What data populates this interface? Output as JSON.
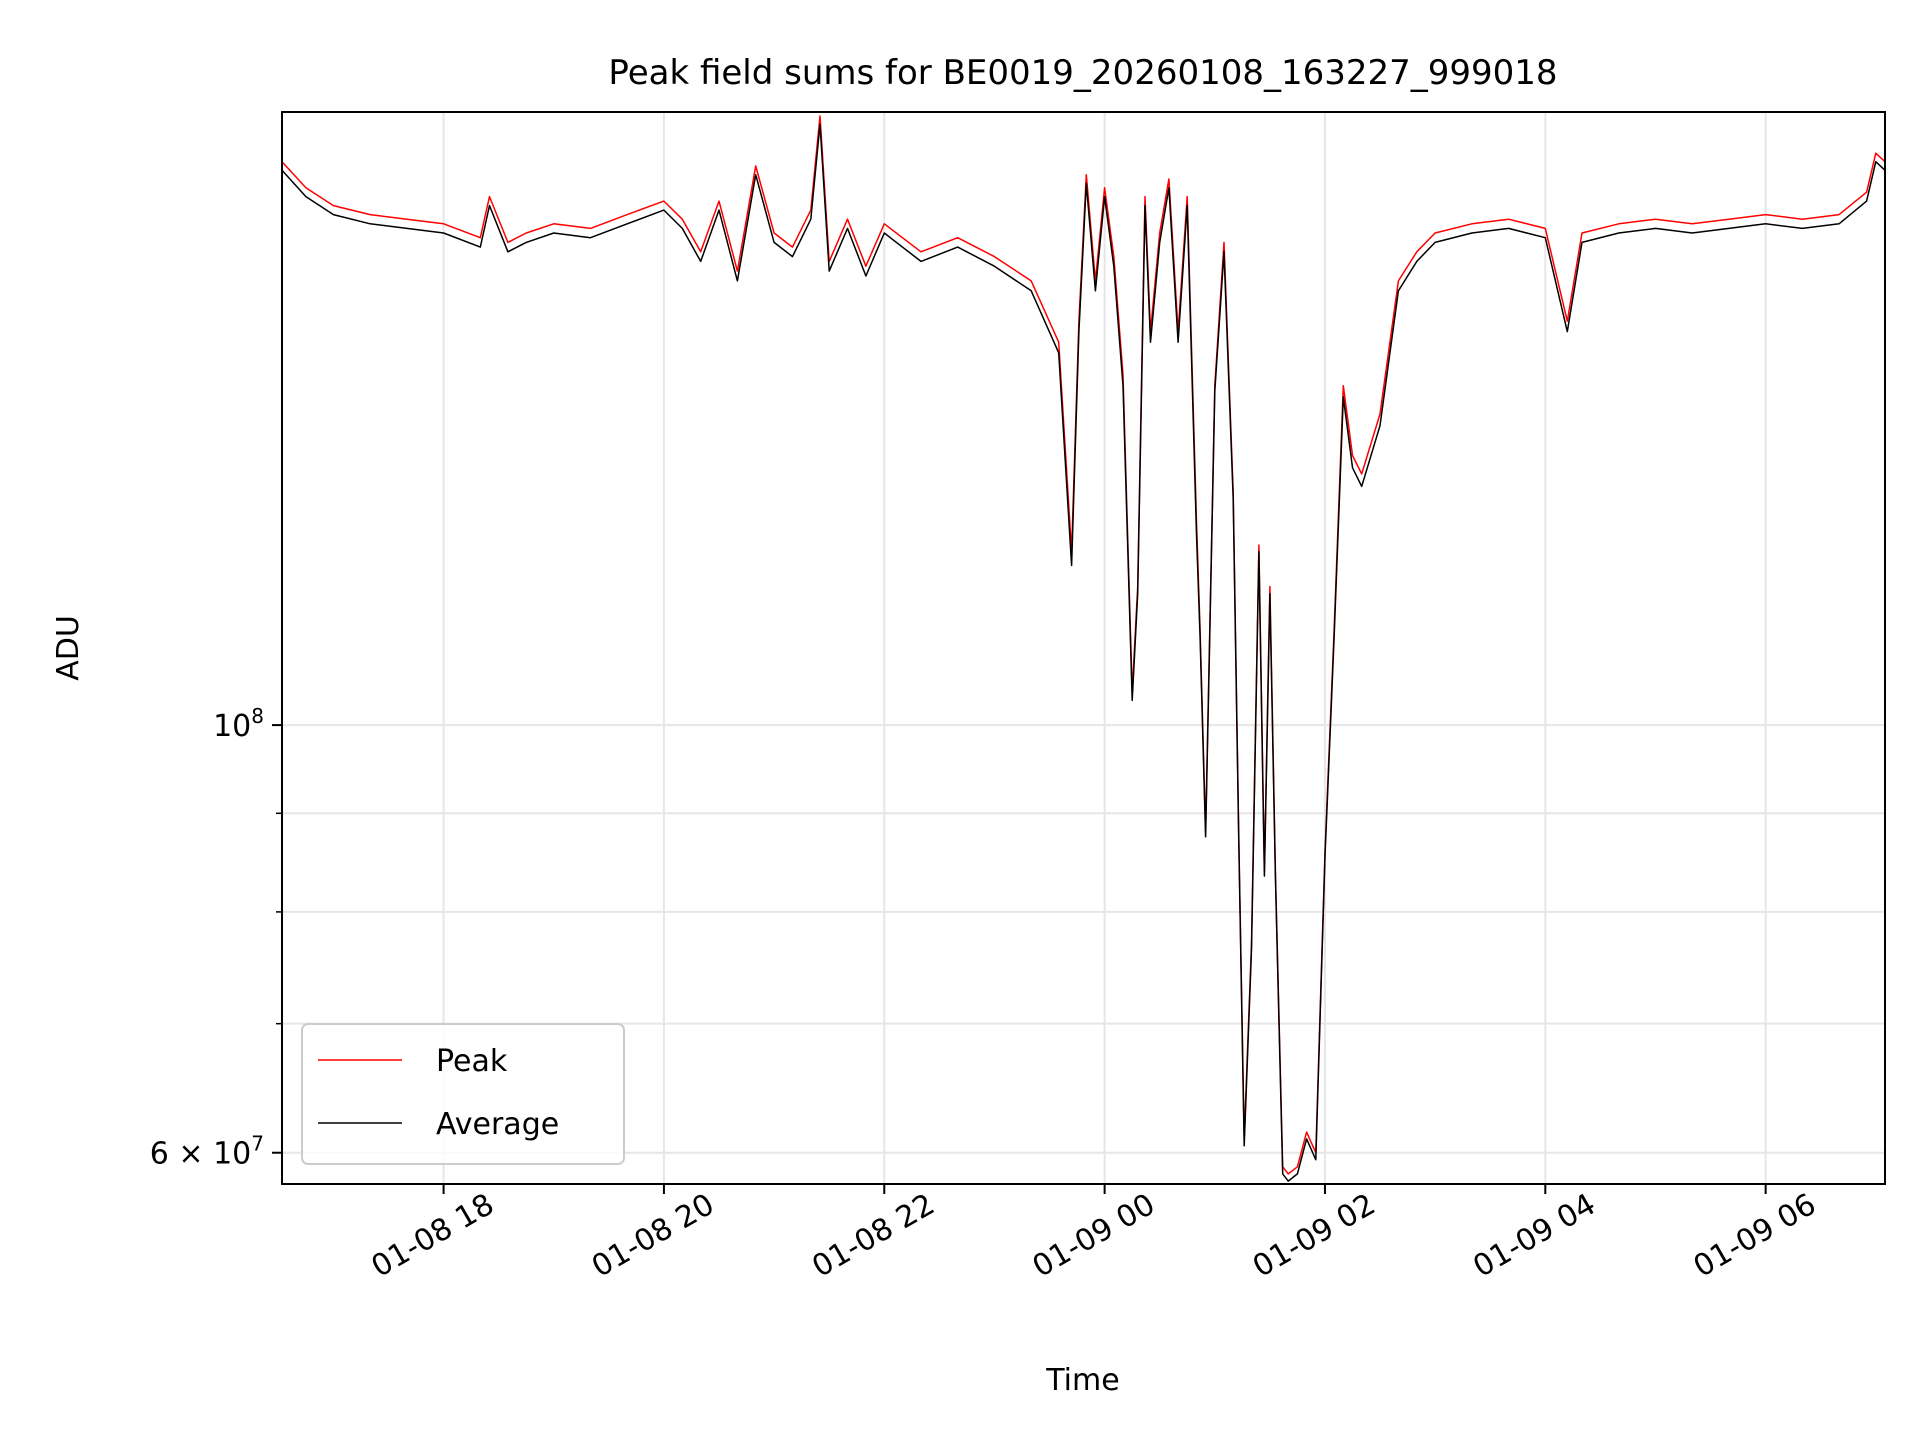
{
  "chart_data": {
    "type": "line",
    "title": "Peak field sums for BE0019_20260108_163227_999018",
    "xlabel": "Time",
    "ylabel": "ADU",
    "y_scale": "log",
    "grid": true,
    "legend_position": "lower-left",
    "xlim": [
      "2026-01-08 16:32",
      "2026-01-09 07:05"
    ],
    "ylim": [
      57800000,
      208000000
    ],
    "x_ticks": [
      {
        "value": "2026-01-08 18:00",
        "label": "01-08 18"
      },
      {
        "value": "2026-01-08 20:00",
        "label": "01-08 20"
      },
      {
        "value": "2026-01-08 22:00",
        "label": "01-08 22"
      },
      {
        "value": "2026-01-09 00:00",
        "label": "01-09 00"
      },
      {
        "value": "2026-01-09 02:00",
        "label": "01-09 02"
      },
      {
        "value": "2026-01-09 04:00",
        "label": "01-09 04"
      },
      {
        "value": "2026-01-09 06:00",
        "label": "01-09 06"
      }
    ],
    "y_major_ticks": [
      {
        "value": 60000000,
        "base": "6 × 10",
        "exp": "7"
      },
      {
        "value": 100000000,
        "base": "10",
        "exp": "8"
      }
    ],
    "y_minor_ticks": [
      70000000,
      80000000,
      90000000
    ],
    "series": [
      {
        "name": "Peak",
        "color": "#ff0000",
        "x": [
          "2026-01-08 16:32",
          "2026-01-08 16:45",
          "2026-01-08 17:00",
          "2026-01-08 17:20",
          "2026-01-08 17:40",
          "2026-01-08 18:00",
          "2026-01-08 18:20",
          "2026-01-08 18:25",
          "2026-01-08 18:35",
          "2026-01-08 18:45",
          "2026-01-08 19:00",
          "2026-01-08 19:20",
          "2026-01-08 19:40",
          "2026-01-08 20:00",
          "2026-01-08 20:10",
          "2026-01-08 20:20",
          "2026-01-08 20:30",
          "2026-01-08 20:40",
          "2026-01-08 20:50",
          "2026-01-08 21:00",
          "2026-01-08 21:10",
          "2026-01-08 21:20",
          "2026-01-08 21:25",
          "2026-01-08 21:30",
          "2026-01-08 21:40",
          "2026-01-08 21:50",
          "2026-01-08 22:00",
          "2026-01-08 22:20",
          "2026-01-08 22:40",
          "2026-01-08 23:00",
          "2026-01-08 23:20",
          "2026-01-08 23:35",
          "2026-01-08 23:42",
          "2026-01-08 23:46",
          "2026-01-08 23:50",
          "2026-01-08 23:55",
          "2026-01-09 00:00",
          "2026-01-09 00:05",
          "2026-01-09 00:10",
          "2026-01-09 00:15",
          "2026-01-09 00:18",
          "2026-01-09 00:22",
          "2026-01-09 00:25",
          "2026-01-09 00:30",
          "2026-01-09 00:35",
          "2026-01-09 00:40",
          "2026-01-09 00:45",
          "2026-01-09 00:50",
          "2026-01-09 00:52",
          "2026-01-09 00:55",
          "2026-01-09 01:00",
          "2026-01-09 01:05",
          "2026-01-09 01:10",
          "2026-01-09 01:13",
          "2026-01-09 01:16",
          "2026-01-09 01:20",
          "2026-01-09 01:24",
          "2026-01-09 01:27",
          "2026-01-09 01:30",
          "2026-01-09 01:33",
          "2026-01-09 01:37",
          "2026-01-09 01:40",
          "2026-01-09 01:45",
          "2026-01-09 01:50",
          "2026-01-09 01:55",
          "2026-01-09 02:00",
          "2026-01-09 02:05",
          "2026-01-09 02:10",
          "2026-01-09 02:15",
          "2026-01-09 02:20",
          "2026-01-09 02:30",
          "2026-01-09 02:40",
          "2026-01-09 02:50",
          "2026-01-09 03:00",
          "2026-01-09 03:20",
          "2026-01-09 03:40",
          "2026-01-09 04:00",
          "2026-01-09 04:12",
          "2026-01-09 04:20",
          "2026-01-09 04:40",
          "2026-01-09 05:00",
          "2026-01-09 05:20",
          "2026-01-09 05:40",
          "2026-01-09 06:00",
          "2026-01-09 06:20",
          "2026-01-09 06:40",
          "2026-01-09 06:55",
          "2026-01-09 07:00",
          "2026-01-09 07:05"
        ],
        "values": [
          196000000,
          190000000,
          186000000,
          184000000,
          183000000,
          182000000,
          179000000,
          188000000,
          178000000,
          180000000,
          182000000,
          181000000,
          184000000,
          187000000,
          183000000,
          176000000,
          187000000,
          172000000,
          195000000,
          180000000,
          177000000,
          185000000,
          207000000,
          174000000,
          183000000,
          173000000,
          182000000,
          176000000,
          179000000,
          175000000,
          170000000,
          158000000,
          123000000,
          162000000,
          193000000,
          170000000,
          190000000,
          175000000,
          152000000,
          104000000,
          118000000,
          188000000,
          160000000,
          180000000,
          192000000,
          160000000,
          188000000,
          128000000,
          112000000,
          88000000,
          150000000,
          178000000,
          132000000,
          88000000,
          61000000,
          77000000,
          124000000,
          84000000,
          118000000,
          84000000,
          59000000,
          58500000,
          59000000,
          61500000,
          60000000,
          86000000,
          112000000,
          150000000,
          138000000,
          135000000,
          145000000,
          170000000,
          176000000,
          180000000,
          182000000,
          183000000,
          181000000,
          162000000,
          180000000,
          182000000,
          183000000,
          182000000,
          183000000,
          184000000,
          183000000,
          184000000,
          189000000,
          198000000,
          196000000
        ]
      },
      {
        "name": "Average",
        "color": "#000000",
        "x": [
          "2026-01-08 16:32",
          "2026-01-08 16:45",
          "2026-01-08 17:00",
          "2026-01-08 17:20",
          "2026-01-08 17:40",
          "2026-01-08 18:00",
          "2026-01-08 18:20",
          "2026-01-08 18:25",
          "2026-01-08 18:35",
          "2026-01-08 18:45",
          "2026-01-08 19:00",
          "2026-01-08 19:20",
          "2026-01-08 19:40",
          "2026-01-08 20:00",
          "2026-01-08 20:10",
          "2026-01-08 20:20",
          "2026-01-08 20:30",
          "2026-01-08 20:40",
          "2026-01-08 20:50",
          "2026-01-08 21:00",
          "2026-01-08 21:10",
          "2026-01-08 21:20",
          "2026-01-08 21:25",
          "2026-01-08 21:30",
          "2026-01-08 21:40",
          "2026-01-08 21:50",
          "2026-01-08 22:00",
          "2026-01-08 22:20",
          "2026-01-08 22:40",
          "2026-01-08 23:00",
          "2026-01-08 23:20",
          "2026-01-08 23:35",
          "2026-01-08 23:42",
          "2026-01-08 23:46",
          "2026-01-08 23:50",
          "2026-01-08 23:55",
          "2026-01-09 00:00",
          "2026-01-09 00:05",
          "2026-01-09 00:10",
          "2026-01-09 00:15",
          "2026-01-09 00:18",
          "2026-01-09 00:22",
          "2026-01-09 00:25",
          "2026-01-09 00:30",
          "2026-01-09 00:35",
          "2026-01-09 00:40",
          "2026-01-09 00:45",
          "2026-01-09 00:50",
          "2026-01-09 00:52",
          "2026-01-09 00:55",
          "2026-01-09 01:00",
          "2026-01-09 01:05",
          "2026-01-09 01:10",
          "2026-01-09 01:13",
          "2026-01-09 01:16",
          "2026-01-09 01:20",
          "2026-01-09 01:24",
          "2026-01-09 01:27",
          "2026-01-09 01:30",
          "2026-01-09 01:33",
          "2026-01-09 01:37",
          "2026-01-09 01:40",
          "2026-01-09 01:45",
          "2026-01-09 01:50",
          "2026-01-09 01:55",
          "2026-01-09 02:00",
          "2026-01-09 02:05",
          "2026-01-09 02:10",
          "2026-01-09 02:15",
          "2026-01-09 02:20",
          "2026-01-09 02:30",
          "2026-01-09 02:40",
          "2026-01-09 02:50",
          "2026-01-09 03:00",
          "2026-01-09 03:20",
          "2026-01-09 03:40",
          "2026-01-09 04:00",
          "2026-01-09 04:12",
          "2026-01-09 04:20",
          "2026-01-09 04:40",
          "2026-01-09 05:00",
          "2026-01-09 05:20",
          "2026-01-09 05:40",
          "2026-01-09 06:00",
          "2026-01-09 06:20",
          "2026-01-09 06:40",
          "2026-01-09 06:55",
          "2026-01-09 07:00",
          "2026-01-09 07:05"
        ],
        "values": [
          194000000,
          188000000,
          184000000,
          182000000,
          181000000,
          180000000,
          177000000,
          186000000,
          176000000,
          178000000,
          180000000,
          179000000,
          182000000,
          185000000,
          181000000,
          174000000,
          185000000,
          170000000,
          193000000,
          178000000,
          175000000,
          183000000,
          205000000,
          172000000,
          181000000,
          171000000,
          180000000,
          174000000,
          177000000,
          173000000,
          168000000,
          156000000,
          121000000,
          160000000,
          191000000,
          168000000,
          188000000,
          173000000,
          150000000,
          103000000,
          117000000,
          186000000,
          158000000,
          178000000,
          190000000,
          158000000,
          186000000,
          126000000,
          111000000,
          87500000,
          149000000,
          176000000,
          131000000,
          87500000,
          60500000,
          76500000,
          123000000,
          83500000,
          117000000,
          83500000,
          58500000,
          58000000,
          58500000,
          61000000,
          59500000,
          85500000,
          111000000,
          148000000,
          136000000,
          133000000,
          143000000,
          168000000,
          174000000,
          178000000,
          180000000,
          181000000,
          179000000,
          160000000,
          178000000,
          180000000,
          181000000,
          180000000,
          181000000,
          182000000,
          181000000,
          182000000,
          187000000,
          196000000,
          194000000
        ]
      }
    ]
  }
}
